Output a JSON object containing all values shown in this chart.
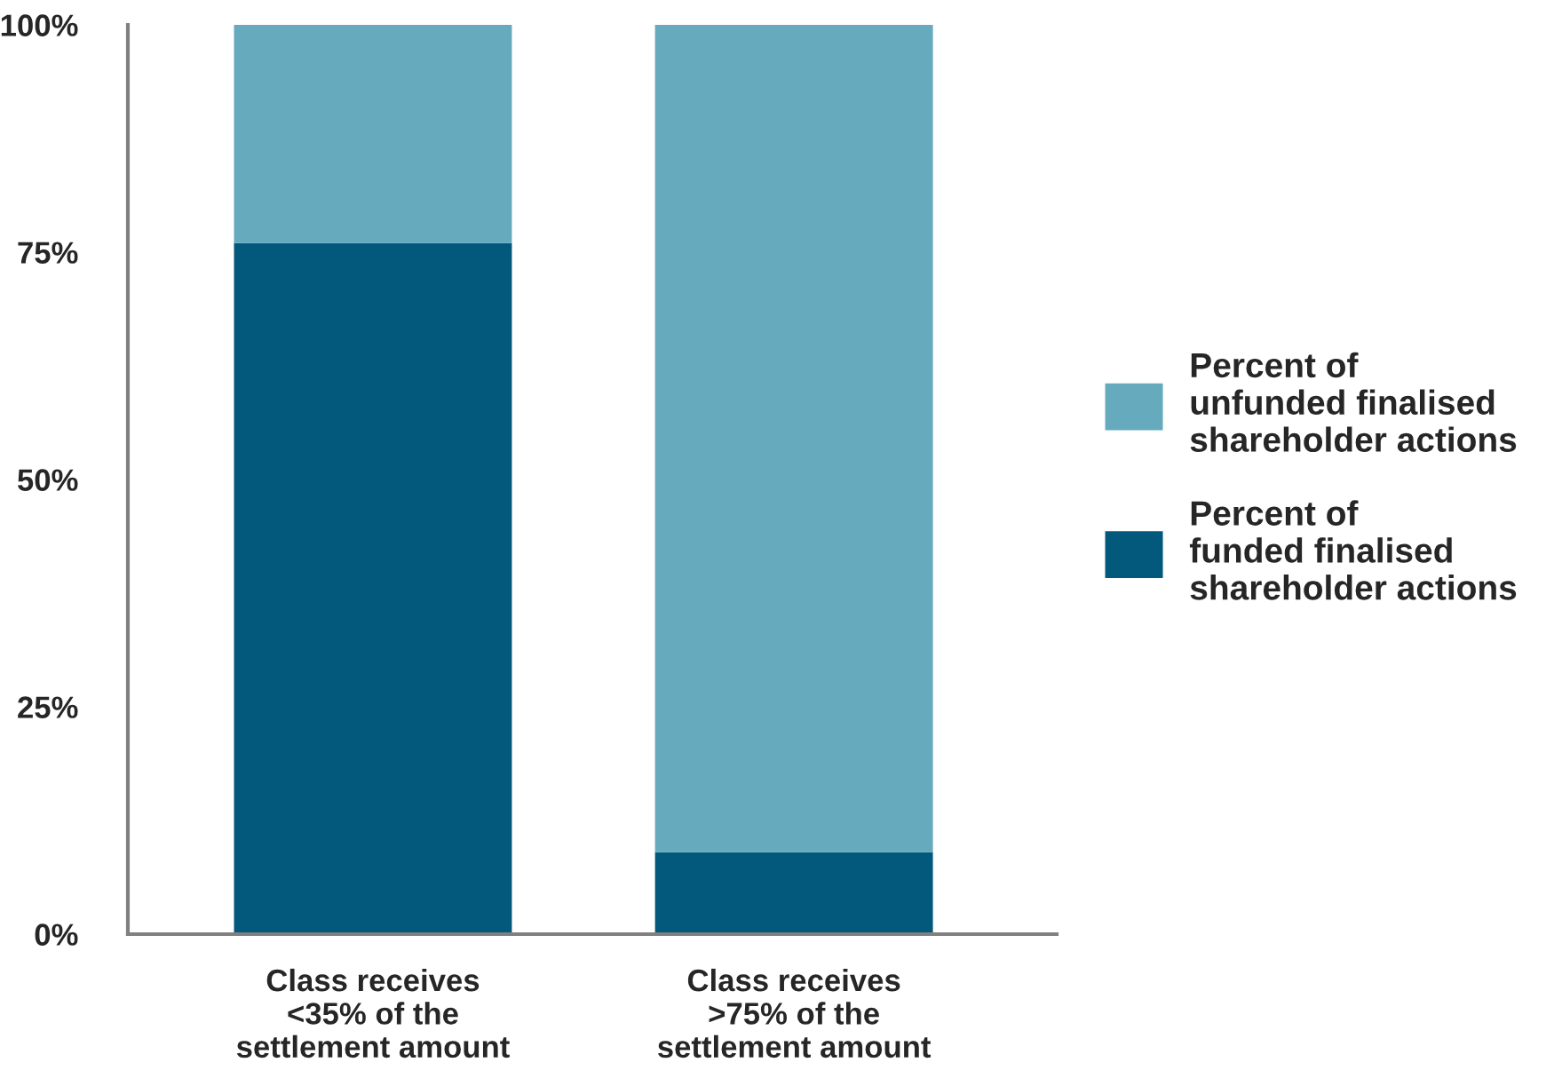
{
  "chart_data": {
    "type": "bar",
    "stacked": true,
    "categories": [
      "Class receives\n<35% of the\nsettlement amount",
      "Class receives\n>75% of the\nsettlement amount"
    ],
    "series": [
      {
        "name": "Percent of\nfunded finalised\nshareholder actions",
        "color": "#02597b",
        "values": [
          76,
          9
        ]
      },
      {
        "name": "Percent of\nunfunded finalised\nshareholder actions",
        "color": "#65aabd",
        "values": [
          24,
          91
        ]
      }
    ],
    "ylim": [
      0,
      100
    ],
    "yticks": [
      {
        "value": 0,
        "label": "0%"
      },
      {
        "value": 25,
        "label": "25%"
      },
      {
        "value": 50,
        "label": "50%"
      },
      {
        "value": 75,
        "label": "75%"
      },
      {
        "value": 100,
        "label": "100%"
      }
    ],
    "grid": false,
    "legend": "right"
  }
}
